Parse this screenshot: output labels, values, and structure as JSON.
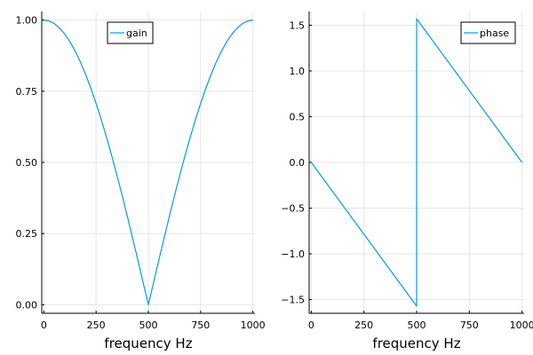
{
  "chart_data": [
    {
      "type": "line",
      "title": "",
      "xlabel": "frequency Hz",
      "ylabel": "",
      "xlim": [
        -10,
        1010
      ],
      "ylim": [
        -0.03,
        1.03
      ],
      "xticks": [
        0,
        250,
        500,
        750,
        1000
      ],
      "xtick_labels": [
        "0",
        "250",
        "500",
        "750",
        "1000"
      ],
      "yticks": [
        0,
        0.25,
        0.5,
        0.75,
        1.0
      ],
      "ytick_labels": [
        "0.00",
        "0.25",
        "0.50",
        "0.75",
        "1.00"
      ],
      "grid": true,
      "legend_position": "top-right",
      "series": [
        {
          "name": "gain",
          "color": "#009af9",
          "x": [
            0,
            25,
            50,
            75,
            100,
            125,
            150,
            175,
            200,
            225,
            250,
            275,
            300,
            325,
            350,
            375,
            400,
            425,
            450,
            475,
            500,
            525,
            550,
            575,
            600,
            625,
            650,
            675,
            700,
            725,
            750,
            775,
            800,
            825,
            850,
            875,
            900,
            925,
            950,
            975,
            1000
          ],
          "y": [
            1.0,
            0.9969,
            0.9877,
            0.9724,
            0.9511,
            0.9239,
            0.891,
            0.8526,
            0.809,
            0.7604,
            0.7071,
            0.6494,
            0.5878,
            0.5225,
            0.454,
            0.3827,
            0.309,
            0.2334,
            0.1564,
            0.0785,
            0.0,
            0.0785,
            0.1564,
            0.2334,
            0.309,
            0.3827,
            0.454,
            0.5225,
            0.5878,
            0.6494,
            0.7071,
            0.7604,
            0.809,
            0.8526,
            0.891,
            0.9239,
            0.9511,
            0.9724,
            0.9877,
            0.9969,
            1.0
          ]
        }
      ]
    },
    {
      "type": "line",
      "title": "",
      "xlabel": "frequency Hz",
      "ylabel": "",
      "xlim": [
        -10,
        1010
      ],
      "ylim": [
        -1.65,
        1.65
      ],
      "xticks": [
        0,
        250,
        500,
        750,
        1000
      ],
      "xtick_labels": [
        "0",
        "250",
        "500",
        "750",
        "1000"
      ],
      "yticks": [
        -1.5,
        -1.0,
        -0.5,
        0.0,
        0.5,
        1.0,
        1.5
      ],
      "ytick_labels": [
        "−1.5",
        "−1.0",
        "−0.5",
        "0.0",
        "0.5",
        "1.0",
        "1.5"
      ],
      "grid": true,
      "legend_position": "top-right",
      "series": [
        {
          "name": "phase",
          "color": "#009af9",
          "x": [
            0,
            500,
            500,
            1000
          ],
          "y": [
            0.0,
            -1.5708,
            1.5708,
            0.0
          ]
        }
      ]
    }
  ]
}
